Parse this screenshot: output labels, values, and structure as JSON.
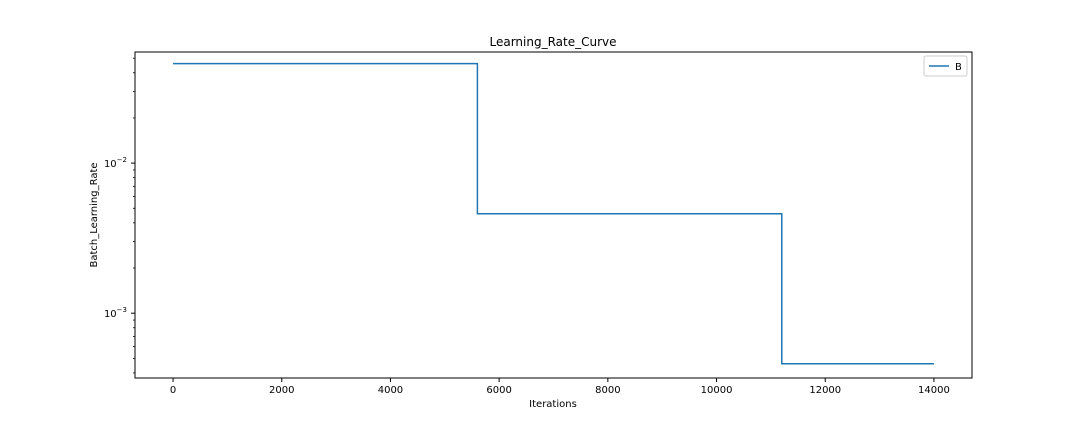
{
  "chart_data": {
    "type": "line",
    "title": "Learning_Rate_Curve",
    "xlabel": "Iterations",
    "ylabel": "Batch_Learning_Rate",
    "yscale": "log",
    "xlim": [
      -700,
      14700
    ],
    "ylim": [
      0.00037,
      0.055
    ],
    "grid": false,
    "legend_position": "top-right",
    "x_ticks": [
      0,
      2000,
      4000,
      6000,
      8000,
      10000,
      12000,
      14000
    ],
    "x_tick_labels": [
      "0",
      "2000",
      "4000",
      "6000",
      "8000",
      "10000",
      "12000",
      "14000"
    ],
    "y_major_ticks": [
      0.001,
      0.01
    ],
    "y_tick_labels": [
      {
        "base": "10",
        "exponent": "−3"
      },
      {
        "base": "10",
        "exponent": "−2"
      }
    ],
    "y_minor_ticks": [
      0.0004,
      0.0005,
      0.0006,
      0.0007,
      0.0008,
      0.0009,
      0.002,
      0.003,
      0.004,
      0.005,
      0.006,
      0.007,
      0.008,
      0.009,
      0.02,
      0.03,
      0.04,
      0.05
    ],
    "series": [
      {
        "name": "B",
        "color": "#1f77b4",
        "step": "post",
        "x": [
          0,
          5600,
          5600,
          11200,
          11200,
          14000
        ],
        "y": [
          0.046,
          0.046,
          0.0046,
          0.0046,
          0.00046,
          0.00046
        ]
      }
    ]
  },
  "colors": {
    "background": "#ffffff",
    "axes": "#000000",
    "series_line": "#1f77b4",
    "legend_border": "#cccccc"
  }
}
